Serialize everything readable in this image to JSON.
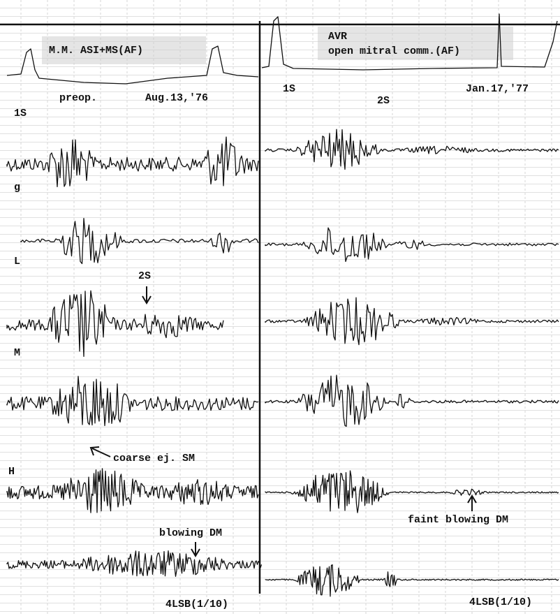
{
  "left_panel": {
    "title": "M.M. ASI+MS(AF)",
    "status": "preop.",
    "date": "Aug.13,'76",
    "labels": {
      "first_sound": "1S",
      "g": "g",
      "L": "L",
      "second_sound": "2S",
      "M": "M",
      "H": "H",
      "systolic_annotation": "coarse ej. SM",
      "diastolic_annotation": "blowing DM",
      "site": "4LSB(1/10)"
    }
  },
  "right_panel": {
    "title": "AVR",
    "subtitle": "open mitral comm.(AF)",
    "date": "Jan.17,'77",
    "labels": {
      "first_sound": "1S",
      "second_sound": "2S",
      "diastolic_annotation": "faint blowing DM",
      "site": "4LSB(1/10)"
    }
  }
}
